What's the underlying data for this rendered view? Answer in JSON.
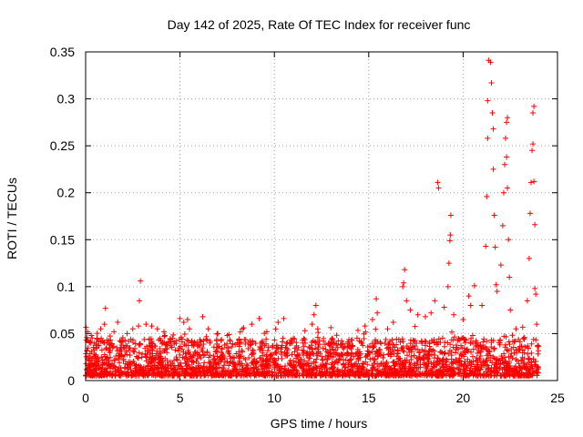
{
  "chart_data": {
    "type": "scatter",
    "title": "Day 142 of 2025, Rate Of TEC Index for receiver func",
    "xlabel": "GPS time / hours",
    "ylabel": "ROTI / TECUs",
    "xlim": [
      0,
      25
    ],
    "ylim": [
      0,
      0.35
    ],
    "xticks": [
      {
        "v": 0,
        "label": "0"
      },
      {
        "v": 5,
        "label": "5"
      },
      {
        "v": 10,
        "label": "10"
      },
      {
        "v": 15,
        "label": "15"
      },
      {
        "v": 20,
        "label": "20"
      },
      {
        "v": 25,
        "label": "25"
      }
    ],
    "yticks": [
      {
        "v": 0,
        "label": "0"
      },
      {
        "v": 0.05,
        "label": "0.05"
      },
      {
        "v": 0.1,
        "label": "0.1"
      },
      {
        "v": 0.15,
        "label": "0.15"
      },
      {
        "v": 0.2,
        "label": "0.2"
      },
      {
        "v": 0.25,
        "label": "0.25"
      },
      {
        "v": 0.3,
        "label": "0.3"
      },
      {
        "v": 0.35,
        "label": "0.35"
      }
    ],
    "grid": true,
    "marker": "+",
    "color": "#ff0000",
    "x_range_of_data": [
      0,
      24
    ],
    "baseline_band_roti": [
      0.005,
      0.045
    ],
    "series": [
      {
        "name": "ROTI",
        "points": [
          [
            0.1,
            0.052
          ],
          [
            0.3,
            0.048
          ],
          [
            0.6,
            0.045
          ],
          [
            0.8,
            0.055
          ],
          [
            1.0,
            0.06
          ],
          [
            1.05,
            0.077
          ],
          [
            1.5,
            0.052
          ],
          [
            1.7,
            0.062
          ],
          [
            2.2,
            0.05
          ],
          [
            2.5,
            0.055
          ],
          [
            2.8,
            0.058
          ],
          [
            2.85,
            0.085
          ],
          [
            2.9,
            0.106
          ],
          [
            3.2,
            0.06
          ],
          [
            3.5,
            0.058
          ],
          [
            3.8,
            0.055
          ],
          [
            4.2,
            0.048
          ],
          [
            4.6,
            0.045
          ],
          [
            4.15,
            0.052
          ],
          [
            5.0,
            0.066
          ],
          [
            5.2,
            0.062
          ],
          [
            5.4,
            0.065
          ],
          [
            5.5,
            0.055
          ],
          [
            6.2,
            0.068
          ],
          [
            6.5,
            0.055
          ],
          [
            7.0,
            0.05
          ],
          [
            7.5,
            0.048
          ],
          [
            8.3,
            0.055
          ],
          [
            8.8,
            0.06
          ],
          [
            9.2,
            0.066
          ],
          [
            9.6,
            0.052
          ],
          [
            10.2,
            0.062
          ],
          [
            10.5,
            0.066
          ],
          [
            11.0,
            0.045
          ],
          [
            11.5,
            0.04
          ],
          [
            12.0,
            0.06
          ],
          [
            12.1,
            0.07
          ],
          [
            12.2,
            0.08
          ],
          [
            12.3,
            0.055
          ],
          [
            12.6,
            0.042
          ],
          [
            13.0,
            0.04
          ],
          [
            13.5,
            0.038
          ],
          [
            14.0,
            0.035
          ],
          [
            14.5,
            0.042
          ],
          [
            14.8,
            0.058
          ],
          [
            15.2,
            0.065
          ],
          [
            15.4,
            0.087
          ],
          [
            15.45,
            0.072
          ],
          [
            16.0,
            0.055
          ],
          [
            16.3,
            0.062
          ],
          [
            16.8,
            0.1
          ],
          [
            16.85,
            0.104
          ],
          [
            16.9,
            0.118
          ],
          [
            17.0,
            0.085
          ],
          [
            17.2,
            0.075
          ],
          [
            17.6,
            0.07
          ],
          [
            18.0,
            0.068
          ],
          [
            18.3,
            0.072
          ],
          [
            18.5,
            0.085
          ],
          [
            18.65,
            0.211
          ],
          [
            18.7,
            0.205
          ],
          [
            19.0,
            0.078
          ],
          [
            19.2,
            0.1
          ],
          [
            19.25,
            0.125
          ],
          [
            19.3,
            0.149
          ],
          [
            19.32,
            0.155
          ],
          [
            19.35,
            0.176
          ],
          [
            19.5,
            0.07
          ],
          [
            20.0,
            0.065
          ],
          [
            20.3,
            0.09
          ],
          [
            20.4,
            0.08
          ],
          [
            20.6,
            0.101
          ],
          [
            21.0,
            0.08
          ],
          [
            21.2,
            0.143
          ],
          [
            21.25,
            0.196
          ],
          [
            21.3,
            0.258
          ],
          [
            21.3,
            0.298
          ],
          [
            21.35,
            0.341
          ],
          [
            21.45,
            0.339
          ],
          [
            21.5,
            0.317
          ],
          [
            21.55,
            0.285
          ],
          [
            21.6,
            0.268
          ],
          [
            21.6,
            0.225
          ],
          [
            21.65,
            0.176
          ],
          [
            21.7,
            0.142
          ],
          [
            21.75,
            0.102
          ],
          [
            21.8,
            0.095
          ],
          [
            22.0,
            0.123
          ],
          [
            22.1,
            0.165
          ],
          [
            22.15,
            0.2
          ],
          [
            22.2,
            0.23
          ],
          [
            22.25,
            0.258
          ],
          [
            22.3,
            0.275
          ],
          [
            22.35,
            0.28
          ],
          [
            22.3,
            0.238
          ],
          [
            22.35,
            0.205
          ],
          [
            22.4,
            0.15
          ],
          [
            22.45,
            0.11
          ],
          [
            22.5,
            0.075
          ],
          [
            22.8,
            0.055
          ],
          [
            23.2,
            0.045
          ],
          [
            23.4,
            0.085
          ],
          [
            23.5,
            0.13
          ],
          [
            23.55,
            0.178
          ],
          [
            23.6,
            0.211
          ],
          [
            23.65,
            0.245
          ],
          [
            23.7,
            0.252
          ],
          [
            23.7,
            0.285
          ],
          [
            23.75,
            0.292
          ],
          [
            23.75,
            0.212
          ],
          [
            23.8,
            0.166
          ],
          [
            23.8,
            0.098
          ],
          [
            23.85,
            0.092
          ],
          [
            23.9,
            0.06
          ]
        ]
      }
    ]
  }
}
